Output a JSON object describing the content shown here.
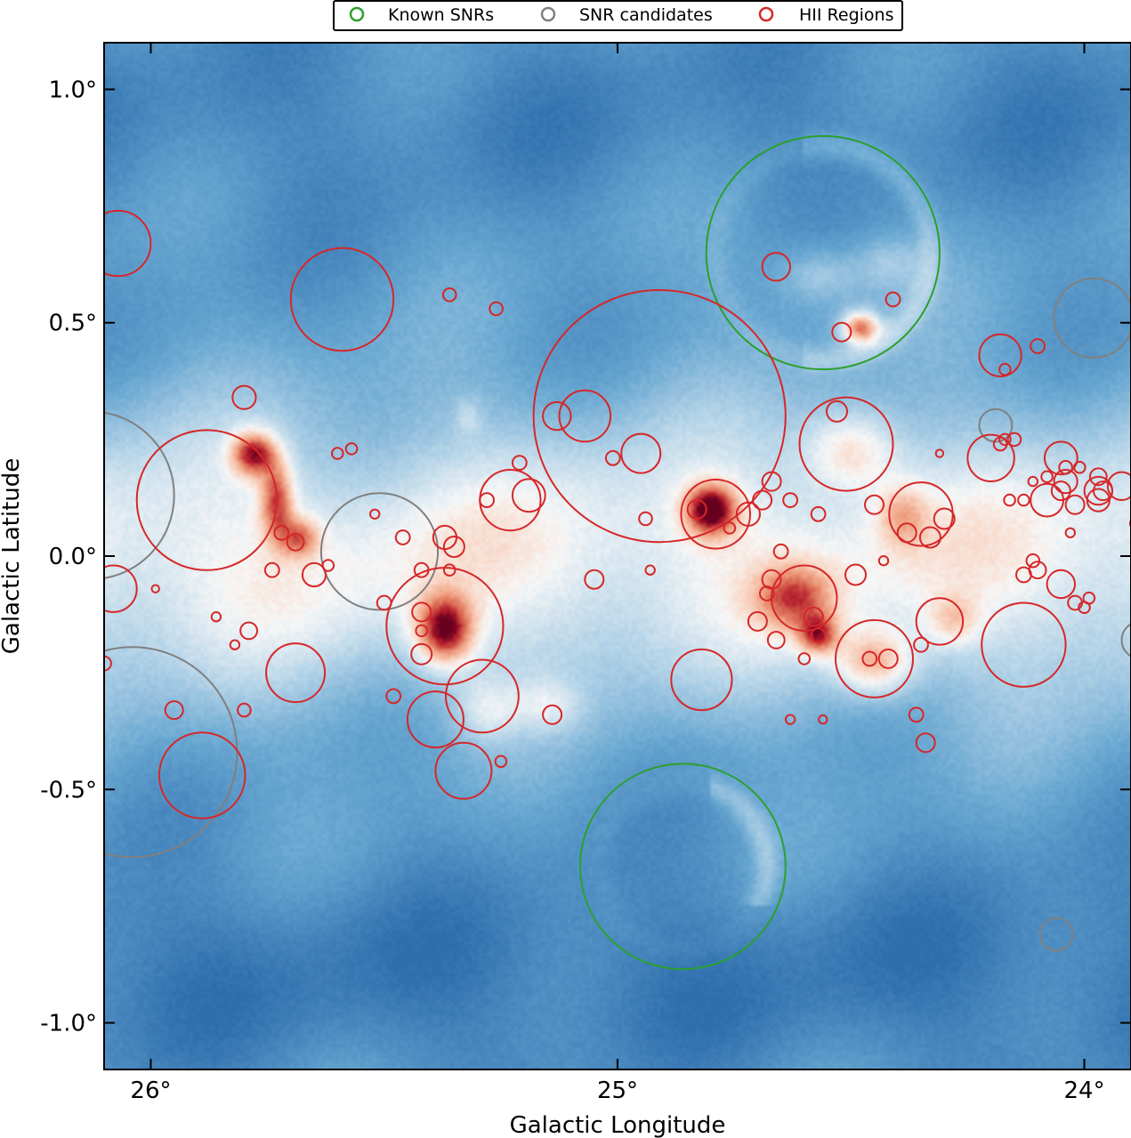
{
  "chart_data": {
    "type": "scatter",
    "title": "",
    "xlabel": "Galactic Longitude",
    "ylabel": "Galactic Latitude",
    "xlim": [
      26.1,
      23.9
    ],
    "ylim": [
      -1.1,
      1.1
    ],
    "x_reversed": true,
    "grid": false,
    "legend_position": "top-center",
    "x_ticks": [
      {
        "value": 26.0,
        "label": "26°"
      },
      {
        "value": 25.0,
        "label": "25°"
      },
      {
        "value": 24.0,
        "label": "24°"
      }
    ],
    "y_ticks": [
      {
        "value": 1.0,
        "label": "1.0°"
      },
      {
        "value": 0.5,
        "label": "0.5°"
      },
      {
        "value": 0.0,
        "label": "0.0°"
      },
      {
        "value": -0.5,
        "label": "-0.5°"
      },
      {
        "value": -1.0,
        "label": "-1.0°"
      }
    ],
    "background": {
      "type": "intensity-map",
      "colormap": "RdBu_r",
      "low_color": "#2f6fae",
      "mid_color": "#f7f7f7",
      "high_color": "#67001f"
    },
    "emission_features": [
      {
        "l": 25.78,
        "b": 0.22,
        "sl": 0.035,
        "sb": 0.035,
        "amp": 0.9
      },
      {
        "l": 25.73,
        "b": 0.12,
        "sl": 0.025,
        "sb": 0.06,
        "amp": 0.7
      },
      {
        "l": 25.68,
        "b": 0.04,
        "sl": 0.03,
        "sb": 0.03,
        "amp": 0.55
      },
      {
        "l": 25.37,
        "b": -0.16,
        "sl": 0.045,
        "sb": 0.055,
        "amp": 1.0
      },
      {
        "l": 25.28,
        "b": -0.33,
        "sl": 0.05,
        "sb": 0.05,
        "amp": 0.35
      },
      {
        "l": 25.15,
        "b": -0.32,
        "sl": 0.05,
        "sb": 0.04,
        "amp": 0.3
      },
      {
        "l": 24.8,
        "b": 0.1,
        "sl": 0.04,
        "sb": 0.04,
        "amp": 1.0
      },
      {
        "l": 24.62,
        "b": -0.09,
        "sl": 0.06,
        "sb": 0.05,
        "amp": 0.6
      },
      {
        "l": 24.57,
        "b": -0.17,
        "sl": 0.03,
        "sb": 0.03,
        "amp": 0.7
      },
      {
        "l": 24.48,
        "b": 0.49,
        "sl": 0.03,
        "sb": 0.025,
        "amp": 1.0
      },
      {
        "l": 24.57,
        "b": 0.6,
        "sl": 0.06,
        "sb": 0.04,
        "amp": 0.3
      },
      {
        "l": 24.42,
        "b": 0.63,
        "sl": 0.05,
        "sb": 0.04,
        "amp": 0.25
      },
      {
        "l": 24.5,
        "b": 0.23,
        "sl": 0.07,
        "sb": 0.06,
        "amp": 0.5
      },
      {
        "l": 24.39,
        "b": 0.09,
        "sl": 0.04,
        "sb": 0.05,
        "amp": 0.4
      },
      {
        "l": 24.45,
        "b": -0.23,
        "sl": 0.06,
        "sb": 0.05,
        "amp": 0.65
      },
      {
        "l": 24.28,
        "b": -0.14,
        "sl": 0.04,
        "sb": 0.04,
        "amp": 0.35
      },
      {
        "l": 25.32,
        "b": 0.3,
        "sl": 0.02,
        "sb": 0.03,
        "amp": 0.2
      }
    ],
    "series": [
      {
        "name": "Known SNRs",
        "color": "#2ca02c",
        "points": [
          {
            "l": 24.56,
            "b": 0.65,
            "r": 0.25
          },
          {
            "l": 24.86,
            "b": -0.665,
            "r": 0.22
          }
        ]
      },
      {
        "name": "SNR candidates",
        "color": "#808080",
        "points": [
          {
            "l": 26.13,
            "b": 0.13,
            "r": 0.18
          },
          {
            "l": 25.51,
            "b": 0.01,
            "r": 0.125
          },
          {
            "l": 26.04,
            "b": -0.42,
            "r": 0.225
          },
          {
            "l": 23.98,
            "b": 0.51,
            "r": 0.085
          },
          {
            "l": 24.19,
            "b": 0.28,
            "r": 0.035
          },
          {
            "l": 24.06,
            "b": -0.81,
            "r": 0.035
          },
          {
            "l": 23.88,
            "b": -0.18,
            "r": 0.04
          }
        ]
      },
      {
        "name": "HII Regions",
        "color": "#d62728",
        "points": [
          {
            "l": 26.07,
            "b": 0.67,
            "r": 0.07
          },
          {
            "l": 25.59,
            "b": 0.55,
            "r": 0.11
          },
          {
            "l": 25.88,
            "b": 0.12,
            "r": 0.15
          },
          {
            "l": 24.91,
            "b": 0.3,
            "r": 0.27
          },
          {
            "l": 25.07,
            "b": 0.3,
            "r": 0.055
          },
          {
            "l": 25.37,
            "b": -0.15,
            "r": 0.125
          },
          {
            "l": 25.29,
            "b": -0.3,
            "r": 0.078
          },
          {
            "l": 25.39,
            "b": -0.35,
            "r": 0.06
          },
          {
            "l": 25.33,
            "b": -0.46,
            "r": 0.06
          },
          {
            "l": 25.23,
            "b": 0.12,
            "r": 0.065
          },
          {
            "l": 24.79,
            "b": 0.09,
            "r": 0.074
          },
          {
            "l": 24.51,
            "b": 0.24,
            "r": 0.1
          },
          {
            "l": 24.6,
            "b": -0.09,
            "r": 0.07
          },
          {
            "l": 24.45,
            "b": -0.22,
            "r": 0.083
          },
          {
            "l": 24.35,
            "b": 0.09,
            "r": 0.068
          },
          {
            "l": 24.31,
            "b": -0.14,
            "r": 0.05
          },
          {
            "l": 24.13,
            "b": -0.19,
            "r": 0.09
          },
          {
            "l": 24.82,
            "b": -0.265,
            "r": 0.065
          },
          {
            "l": 25.89,
            "b": -0.47,
            "r": 0.092
          },
          {
            "l": 25.69,
            "b": -0.25,
            "r": 0.063
          },
          {
            "l": 26.08,
            "b": -0.07,
            "r": 0.05
          },
          {
            "l": 24.18,
            "b": 0.43,
            "r": 0.045
          },
          {
            "l": 24.05,
            "b": 0.21,
            "r": 0.035
          },
          {
            "l": 24.2,
            "b": 0.21,
            "r": 0.05
          },
          {
            "l": 24.08,
            "b": 0.12,
            "r": 0.035
          },
          {
            "l": 24.05,
            "b": -0.06,
            "r": 0.03
          },
          {
            "l": 24.04,
            "b": 0.16,
            "r": 0.025
          },
          {
            "l": 24.02,
            "b": 0.11,
            "r": 0.02
          },
          {
            "l": 23.97,
            "b": 0.14,
            "r": 0.03
          },
          {
            "l": 23.92,
            "b": 0.15,
            "r": 0.03
          },
          {
            "l": 24.45,
            "b": 0.11,
            "r": 0.02
          },
          {
            "l": 24.53,
            "b": 0.31,
            "r": 0.022
          },
          {
            "l": 24.41,
            "b": 0.55,
            "r": 0.015
          },
          {
            "l": 24.52,
            "b": 0.48,
            "r": 0.02
          },
          {
            "l": 24.66,
            "b": 0.62,
            "r": 0.03
          },
          {
            "l": 25.13,
            "b": 0.3,
            "r": 0.03
          },
          {
            "l": 24.95,
            "b": 0.22,
            "r": 0.042
          },
          {
            "l": 24.94,
            "b": 0.08,
            "r": 0.014
          },
          {
            "l": 24.83,
            "b": 0.1,
            "r": 0.02
          },
          {
            "l": 24.67,
            "b": 0.16,
            "r": 0.02
          },
          {
            "l": 24.69,
            "b": 0.12,
            "r": 0.02
          },
          {
            "l": 24.72,
            "b": 0.09,
            "r": 0.025
          },
          {
            "l": 24.76,
            "b": 0.06,
            "r": 0.012
          },
          {
            "l": 24.63,
            "b": 0.12,
            "r": 0.015
          },
          {
            "l": 24.57,
            "b": 0.09,
            "r": 0.015
          },
          {
            "l": 24.38,
            "b": 0.05,
            "r": 0.02
          },
          {
            "l": 24.49,
            "b": -0.04,
            "r": 0.022
          },
          {
            "l": 24.68,
            "b": -0.08,
            "r": 0.015
          },
          {
            "l": 24.93,
            "b": -0.03,
            "r": 0.01
          },
          {
            "l": 25.05,
            "b": -0.05,
            "r": 0.02
          },
          {
            "l": 25.01,
            "b": 0.21,
            "r": 0.015
          },
          {
            "l": 25.19,
            "b": 0.13,
            "r": 0.035
          },
          {
            "l": 25.28,
            "b": 0.12,
            "r": 0.015
          },
          {
            "l": 25.21,
            "b": 0.2,
            "r": 0.015
          },
          {
            "l": 25.57,
            "b": 0.23,
            "r": 0.012
          },
          {
            "l": 25.6,
            "b": 0.22,
            "r": 0.012
          },
          {
            "l": 25.37,
            "b": 0.04,
            "r": 0.025
          },
          {
            "l": 25.35,
            "b": 0.02,
            "r": 0.022
          },
          {
            "l": 25.46,
            "b": 0.04,
            "r": 0.015
          },
          {
            "l": 25.52,
            "b": 0.09,
            "r": 0.01
          },
          {
            "l": 25.5,
            "b": -0.1,
            "r": 0.015
          },
          {
            "l": 25.42,
            "b": -0.03,
            "r": 0.015
          },
          {
            "l": 25.36,
            "b": -0.03,
            "r": 0.012
          },
          {
            "l": 25.42,
            "b": -0.12,
            "r": 0.02
          },
          {
            "l": 25.42,
            "b": -0.16,
            "r": 0.012
          },
          {
            "l": 25.42,
            "b": -0.21,
            "r": 0.022
          },
          {
            "l": 25.48,
            "b": -0.3,
            "r": 0.015
          },
          {
            "l": 25.65,
            "b": -0.04,
            "r": 0.025
          },
          {
            "l": 25.62,
            "b": -0.02,
            "r": 0.012
          },
          {
            "l": 25.74,
            "b": -0.03,
            "r": 0.015
          },
          {
            "l": 25.79,
            "b": -0.16,
            "r": 0.018
          },
          {
            "l": 25.8,
            "b": -0.33,
            "r": 0.014
          },
          {
            "l": 25.72,
            "b": 0.05,
            "r": 0.015
          },
          {
            "l": 25.69,
            "b": 0.03,
            "r": 0.018
          },
          {
            "l": 25.36,
            "b": 0.56,
            "r": 0.014
          },
          {
            "l": 25.26,
            "b": 0.53,
            "r": 0.014
          },
          {
            "l": 25.8,
            "b": 0.34,
            "r": 0.025
          },
          {
            "l": 25.95,
            "b": -0.33,
            "r": 0.019
          },
          {
            "l": 26.1,
            "b": -0.23,
            "r": 0.015
          },
          {
            "l": 25.82,
            "b": -0.19,
            "r": 0.01
          },
          {
            "l": 25.86,
            "b": -0.13,
            "r": 0.01
          },
          {
            "l": 25.99,
            "b": -0.07,
            "r": 0.008
          },
          {
            "l": 25.25,
            "b": -0.44,
            "r": 0.012
          },
          {
            "l": 25.14,
            "b": -0.34,
            "r": 0.02
          },
          {
            "l": 24.66,
            "b": -0.18,
            "r": 0.018
          },
          {
            "l": 24.7,
            "b": -0.14,
            "r": 0.02
          },
          {
            "l": 24.63,
            "b": -0.35,
            "r": 0.01
          },
          {
            "l": 24.58,
            "b": -0.13,
            "r": 0.02
          },
          {
            "l": 24.65,
            "b": 0.01,
            "r": 0.015
          },
          {
            "l": 24.33,
            "b": 0.04,
            "r": 0.022
          },
          {
            "l": 24.3,
            "b": 0.08,
            "r": 0.022
          },
          {
            "l": 24.67,
            "b": -0.05,
            "r": 0.02
          },
          {
            "l": 24.57,
            "b": -0.17,
            "r": 0.015
          },
          {
            "l": 24.6,
            "b": -0.22,
            "r": 0.012
          },
          {
            "l": 24.46,
            "b": -0.22,
            "r": 0.015
          },
          {
            "l": 24.42,
            "b": -0.22,
            "r": 0.02
          },
          {
            "l": 24.35,
            "b": -0.19,
            "r": 0.015
          },
          {
            "l": 24.43,
            "b": -0.01,
            "r": 0.01
          },
          {
            "l": 24.36,
            "b": -0.34,
            "r": 0.015
          },
          {
            "l": 24.34,
            "b": -0.4,
            "r": 0.02
          },
          {
            "l": 24.56,
            "b": -0.35,
            "r": 0.009
          },
          {
            "l": 24.31,
            "b": 0.22,
            "r": 0.008
          },
          {
            "l": 24.13,
            "b": -0.04,
            "r": 0.016
          },
          {
            "l": 24.1,
            "b": -0.03,
            "r": 0.018
          },
          {
            "l": 24.11,
            "b": -0.01,
            "r": 0.014
          },
          {
            "l": 24.18,
            "b": 0.24,
            "r": 0.014
          },
          {
            "l": 24.17,
            "b": 0.25,
            "r": 0.012
          },
          {
            "l": 24.15,
            "b": 0.25,
            "r": 0.014
          },
          {
            "l": 24.16,
            "b": 0.12,
            "r": 0.012
          },
          {
            "l": 24.13,
            "b": 0.12,
            "r": 0.012
          },
          {
            "l": 24.11,
            "b": 0.16,
            "r": 0.01
          },
          {
            "l": 24.08,
            "b": 0.17,
            "r": 0.012
          },
          {
            "l": 23.97,
            "b": 0.12,
            "r": 0.024
          },
          {
            "l": 23.97,
            "b": 0.17,
            "r": 0.018
          },
          {
            "l": 23.96,
            "b": 0.14,
            "r": 0.02
          },
          {
            "l": 24.17,
            "b": 0.4,
            "r": 0.012
          },
          {
            "l": 24.1,
            "b": 0.45,
            "r": 0.015
          },
          {
            "l": 24.01,
            "b": 0.19,
            "r": 0.012
          },
          {
            "l": 24.04,
            "b": 0.19,
            "r": 0.014
          },
          {
            "l": 24.03,
            "b": 0.05,
            "r": 0.01
          },
          {
            "l": 23.99,
            "b": -0.09,
            "r": 0.012
          },
          {
            "l": 24.0,
            "b": -0.11,
            "r": 0.012
          },
          {
            "l": 23.89,
            "b": -0.28,
            "r": 0.009
          },
          {
            "l": 23.89,
            "b": 0.07,
            "r": 0.012
          },
          {
            "l": 24.02,
            "b": -0.1,
            "r": 0.015
          },
          {
            "l": 24.05,
            "b": 0.14,
            "r": 0.02
          }
        ]
      }
    ]
  }
}
